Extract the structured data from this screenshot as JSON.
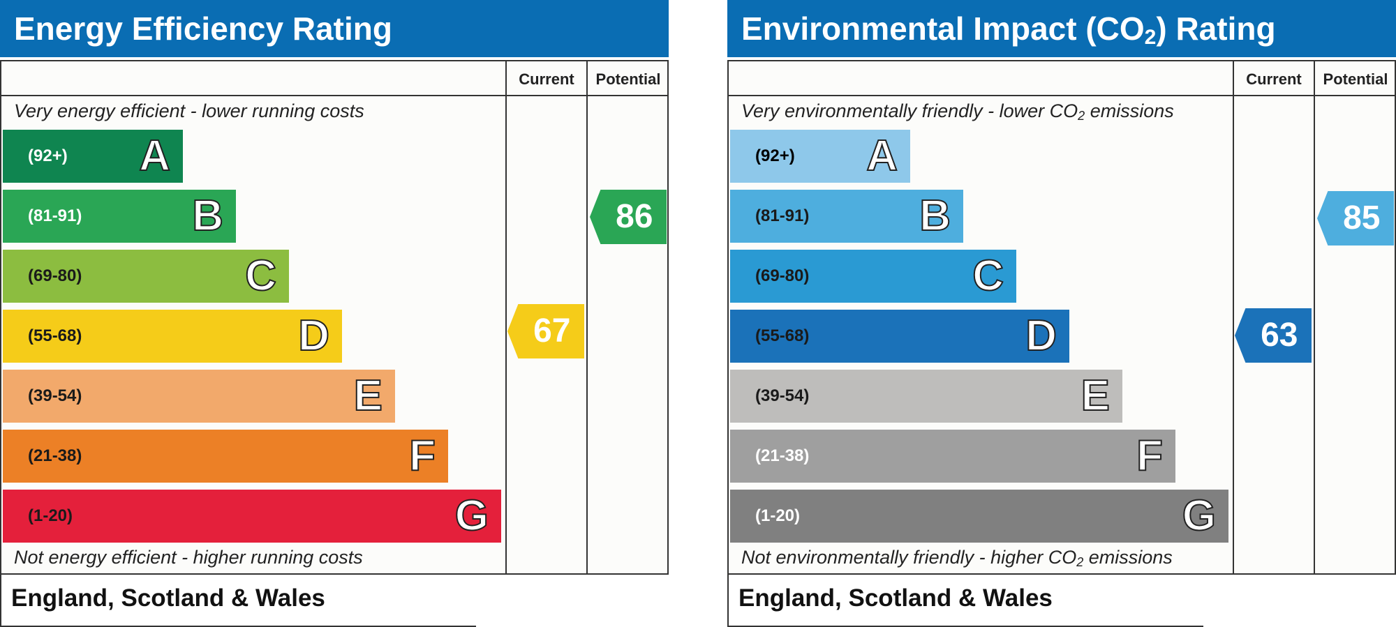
{
  "chart_data": [
    {
      "type": "bar",
      "title": "Energy Efficiency Rating",
      "column_current": "Current",
      "column_potential": "Potential",
      "top_text": "Very energy efficient - lower running costs",
      "bottom_text": "Not energy efficient - higher running costs",
      "footer": "England, Scotland & Wales",
      "bands": [
        {
          "letter": "A",
          "range": "(92+)",
          "min": 92,
          "max": 100,
          "color": "#0f8550",
          "text_color": "#ffffff"
        },
        {
          "letter": "B",
          "range": "(81-91)",
          "min": 81,
          "max": 91,
          "color": "#2aa655",
          "text_color": "#ffffff"
        },
        {
          "letter": "C",
          "range": "(69-80)",
          "min": 69,
          "max": 80,
          "color": "#8cbd40",
          "text_color": "#1a1a1a"
        },
        {
          "letter": "D",
          "range": "(55-68)",
          "min": 55,
          "max": 68,
          "color": "#f5cc19",
          "text_color": "#1a1a1a"
        },
        {
          "letter": "E",
          "range": "(39-54)",
          "min": 39,
          "max": 54,
          "color": "#f2a96b",
          "text_color": "#1a1a1a"
        },
        {
          "letter": "F",
          "range": "(21-38)",
          "min": 21,
          "max": 38,
          "color": "#ec8026",
          "text_color": "#1a1a1a"
        },
        {
          "letter": "G",
          "range": "(1-20)",
          "min": 1,
          "max": 20,
          "color": "#e4203b",
          "text_color": "#1a1a1a"
        }
      ],
      "current": {
        "value": 67,
        "band": "D",
        "color": "#f5cc19"
      },
      "potential": {
        "value": 86,
        "band": "B",
        "color": "#2aa655"
      }
    },
    {
      "type": "bar",
      "title_main": "Environmental Impact (CO",
      "title_sub": "2",
      "title_end": ") Rating",
      "column_current": "Current",
      "column_potential": "Potential",
      "top_text_main": "Very environmentally friendly - lower CO",
      "top_text_sub": "2",
      "top_text_end": " emissions",
      "bottom_text_main": "Not environmentally friendly - higher CO",
      "bottom_text_sub": "2",
      "bottom_text_end": " emissions",
      "footer": "England, Scotland & Wales",
      "bands": [
        {
          "letter": "A",
          "range": "(92+)",
          "min": 92,
          "max": 100,
          "color": "#8ec8ea",
          "text_color": "#000000"
        },
        {
          "letter": "B",
          "range": "(81-91)",
          "min": 81,
          "max": 91,
          "color": "#4eaede",
          "text_color": "#1a1a1a"
        },
        {
          "letter": "C",
          "range": "(69-80)",
          "min": 69,
          "max": 80,
          "color": "#2a9ad3",
          "text_color": "#1a1a1a"
        },
        {
          "letter": "D",
          "range": "(55-68)",
          "min": 55,
          "max": 68,
          "color": "#1b72b9",
          "text_color": "#1a1a1a"
        },
        {
          "letter": "E",
          "range": "(39-54)",
          "min": 39,
          "max": 54,
          "color": "#bebdbb",
          "text_color": "#1a1a1a"
        },
        {
          "letter": "F",
          "range": "(21-38)",
          "min": 21,
          "max": 38,
          "color": "#9f9f9f",
          "text_color": "#ffffff"
        },
        {
          "letter": "G",
          "range": "(1-20)",
          "min": 1,
          "max": 20,
          "color": "#808080",
          "text_color": "#ffffff"
        }
      ],
      "current": {
        "value": 63,
        "band": "D",
        "color": "#1b72b9"
      },
      "potential": {
        "value": 85,
        "band": "B",
        "color": "#4eaede"
      }
    }
  ]
}
